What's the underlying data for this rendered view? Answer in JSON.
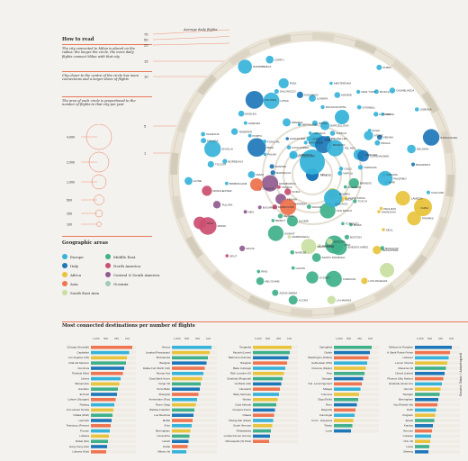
{
  "colors": {
    "europe": "#36b3d9",
    "italy": "#1d77b8",
    "africa": "#e8c33c",
    "asia": "#ee7550",
    "middle_east": "#3fb08a",
    "north_america": "#cc4e70",
    "central_south_america": "#905a8f",
    "south_east_asia": "#c8dfa2",
    "oceania": "#9ecbb8",
    "accent": "#e8785a"
  },
  "scale": {
    "values": [
      "75",
      "50",
      "25",
      "15",
      "10",
      "5",
      "1"
    ],
    "label_top": "Average daily flights"
  },
  "how_to_read": {
    "title": "How to read",
    "p1": "The city connected to Milan is placed on the radius: the longer the circle, the more daily flights connect Milan with that city",
    "p2": "City closer to the centre of the circle has more connections and a larger share of flights",
    "p3": "The area of each circle is proportional to the number of flights to that city per year"
  },
  "size_legend": {
    "labels": [
      "4,000",
      "2,000",
      "1,000",
      "500",
      "250",
      "100"
    ]
  },
  "areas": {
    "title": "Geographic areas",
    "items": [
      {
        "label": "Europe",
        "color": "#36b3d9"
      },
      {
        "label": "Italy",
        "color": "#1d77b8"
      },
      {
        "label": "Africa",
        "color": "#e8c33c"
      },
      {
        "label": "Asia",
        "color": "#ee7550"
      },
      {
        "label": "South East Asia",
        "color": "#c8dfa2"
      },
      {
        "label": "Middle East",
        "color": "#3fb08a"
      },
      {
        "label": "North America",
        "color": "#cc4e70"
      },
      {
        "label": "Central & South America",
        "color": "#905a8f"
      },
      {
        "label": "Oceania",
        "color": "#9ecbb8"
      }
    ]
  },
  "bottom": {
    "title": "Most connected destinations per number of flights",
    "axis_ticks": [
      "1,000",
      "500",
      "250",
      "100"
    ],
    "side_note": "Source: Enac / Assaeroporti"
  },
  "chart_data": [
    {
      "type": "scatter",
      "title": "",
      "center_label": "Milano",
      "city_labels": [
        "LONDRA",
        "PARIGI",
        "ROMA",
        "FRANCOFORTE",
        "AMSTERDAM",
        "BARCELLONA",
        "MADRID",
        "MONACO",
        "BRUXELLES",
        "ZURIGO",
        "NEW YORK",
        "DUBAI",
        "ISTANBUL",
        "MOSCA",
        "TEL AVIV",
        "CASABLANCA",
        "IL CAIRO",
        "TUNISI",
        "DOHA",
        "ATENE",
        "LISBONA",
        "VIENNA",
        "PRAGA",
        "BERLINO",
        "COPENAGHEN",
        "STOCCOLMA",
        "HELSINKI",
        "OSLO",
        "VARSAVIA",
        "BUDAPEST",
        "NAPOLI",
        "CATANIA",
        "PALERMO",
        "BARI",
        "CAGLIARI",
        "BRINDISI",
        "LAMEZIA",
        "OLBIA",
        "ALGHERO",
        "TRAPANI",
        "PECHINO",
        "SHANGHAI",
        "TOKYO",
        "HONG KONG",
        "SEUL",
        "DELHI",
        "MUMBAI",
        "BANGKOK",
        "SINGAPORE",
        "MIAMI",
        "CHICAGO",
        "TORONTO",
        "BOSTON",
        "LOS ANGELES",
        "SAN PAOLO",
        "BUENOS AIRES",
        "LIMA",
        "BOGOTA",
        "CARACAS",
        "LA HAVANA",
        "CANCUN",
        "SANTO DOMINGO",
        "SYDNEY",
        "MELBOURNE",
        "DAKAR",
        "ACCRA",
        "LAGOS",
        "NAIROBI",
        "ADDIS ABEBA",
        "MARRAKECH",
        "ALGERI",
        "ABU DHABI",
        "RIAD",
        "KUWAIT",
        "BAHREIN",
        "AMMAN",
        "BEIRUT",
        "MALTA",
        "SPLIT",
        "DUBROVNIK",
        "TIRANA",
        "SOFIA",
        "BUCAREST",
        "KIEV",
        "MINSK",
        "RIGA",
        "VILNIUS",
        "TALLINN",
        "DUBLINO",
        "EDIMBURGO",
        "MANCHESTER",
        "BIRMINGHAM",
        "LIONE",
        "NIZZA",
        "MARSIGLIA",
        "TOLOSA",
        "BORDEAUX",
        "NANTES",
        "SIVIGLIA",
        "MALAGA",
        "VALENCIA",
        "PALMA",
        "IBIZA",
        "TENERIFE",
        "PORTO",
        "FUNCHAL",
        "GINEVRA",
        "BASILEA",
        "DUSSELDORF",
        "AMBURGO",
        "STOCCARDA",
        "COLONIA",
        "HANNOVER",
        "NORIMBERGA",
        "LIPSIA",
        "DRESDA",
        "SALONICCO",
        "CORFU",
        "RODI",
        "HERAKLION",
        "SANTORINI",
        "MYKONOS",
        "CIPRO",
        "LARNACA"
      ],
      "values": []
    },
    {
      "type": "bar",
      "title": "",
      "panels": [
        {
          "categories": [
            "Chicago (Norwalk)",
            "Capitalbot",
            "Los Angeles (Intl)",
            "Città del Messico",
            "Dominica",
            "Portland (Mot)",
            "Liberia",
            "Baraemarie",
            "Hamilton",
            "El Petel",
            "Lahore (Stuttgart)",
            "Padang",
            "Kö Lookout Florida",
            "Dhaka (Wolf)",
            "Lambeth",
            "Francisco (Fresno)",
            "Poznan",
            "Lubiana",
            "Rabat (Zoi)",
            "Hong Kong (Kai)",
            "Lisbona (Kuk)"
          ],
          "values": [
            92,
            85,
            80,
            78,
            74,
            71,
            66,
            63,
            60,
            58,
            55,
            52,
            50,
            48,
            46,
            44,
            42,
            40,
            38,
            36,
            34
          ]
        },
        {
          "categories": [
            "Vienna",
            "Lusaka (Franciscan)",
            "Shizukuoka",
            "Bangkok",
            "Dallas Fort Worth (Intl)",
            "Murray Aca",
            "Gaza Bank Azure",
            "Fargo Intl",
            "Porto Bello",
            "Shanghai",
            "Amsterdam (Ros)",
            "Rome (Sag)",
            "Basilea Frankfurt",
            "Los Mouritius",
            "Moffat",
            "Xi'an",
            "Birmingham",
            "Ceramiche",
            "Lacobi",
            "Dubai",
            "Milano Intl"
          ],
          "values": [
            88,
            84,
            80,
            77,
            73,
            70,
            67,
            64,
            62,
            59,
            56,
            53,
            50,
            48,
            46,
            44,
            41,
            39,
            37,
            35,
            32
          ]
        },
        {
          "categories": [
            "Tanganka",
            "Munich (Lever)",
            "Baltimore (Kalmar)",
            "Bangkok",
            "Bade Cobargel",
            "Ride Lorraine (G)",
            "Charlotte (Regional)",
            "Ho Bank (Intl)",
            "Cleveland",
            "Baby Santuary",
            "Wuhan",
            "Casa Airbault",
            "Coopera Interio",
            "Ottawa",
            "Chiang Mai (Karat)",
            "South Vermont",
            "Philadelphia",
            "Lumba Kenner (Kemo)",
            "Minneapolis (St Paul)"
          ],
          "values": [
            86,
            82,
            79,
            76,
            72,
            69,
            66,
            63,
            60,
            58,
            55,
            52,
            49,
            47,
            45,
            43,
            40,
            38,
            36
          ]
        },
        {
          "categories": [
            "Springfield",
            "Dublin",
            "Washington (Dulles)",
            "Gulbenkian (Phil)",
            "Florence (Mojito)",
            "Nice",
            "Stuttgart",
            "S.E. Lemmingerport",
            "Malaga",
            "Cremona",
            "Olga (Rolls)",
            "Reno",
            "Magnolia",
            "Kunmingal",
            "Fort L. Holywood",
            "Toledo",
            "Lotus"
          ],
          "values": [
            84,
            80,
            77,
            74,
            71,
            68,
            65,
            62,
            59,
            56,
            54,
            51,
            48,
            46,
            43,
            41,
            38
          ]
        },
        {
          "categories": [
            "Melbourne Paradise",
            "A. Bank Pointe Pointe",
            "Lebanon",
            "Lemon Victoria",
            "Manama Intl",
            "Detroit (Lakes)",
            "Phoenix (Sky Harbor)",
            "Grabrelle (Hotel Inn)",
            "Ha Linh",
            "Stuttgart",
            "Birmingham",
            "Kig (Fickled Intl)",
            "Delhi",
            "Kingston",
            "Eluaid",
            "Kandoy",
            "Vermont",
            "Curacao",
            "Ortu Intl",
            "Lewis",
            "Sheleng"
          ],
          "values": [
            82,
            78,
            75,
            72,
            69,
            66,
            63,
            60,
            57,
            55,
            52,
            50,
            47,
            45,
            43,
            40,
            38,
            36,
            34,
            32,
            30
          ]
        }
      ]
    }
  ]
}
